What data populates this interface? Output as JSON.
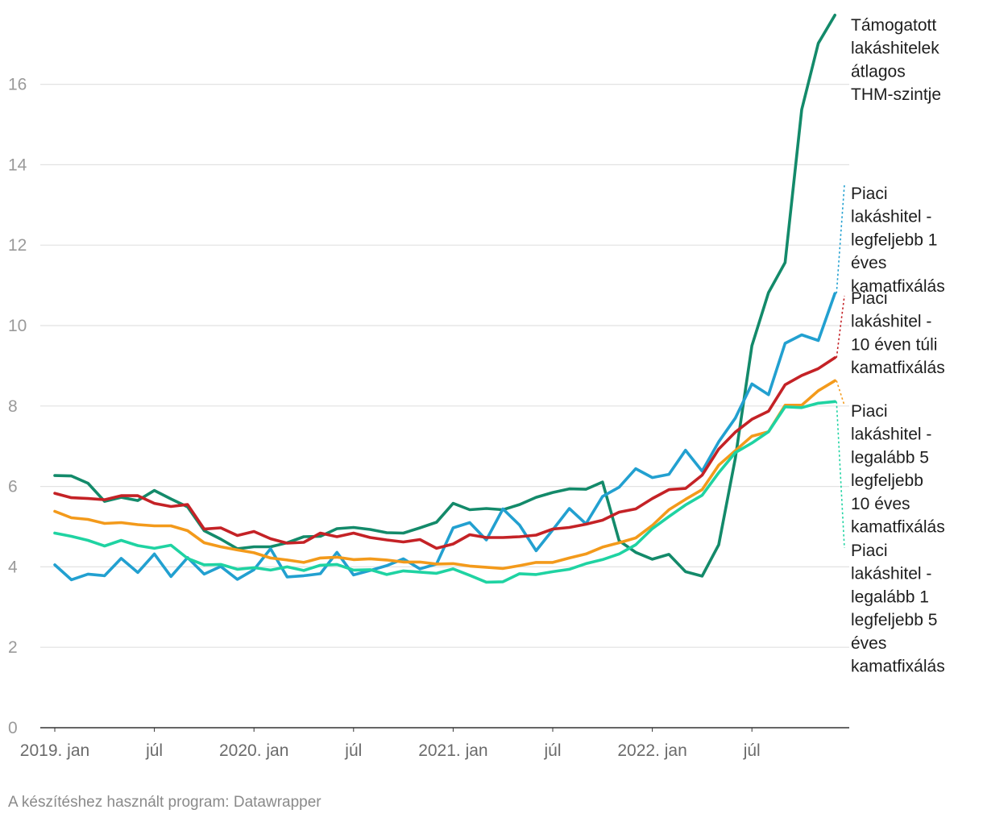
{
  "chart_data": {
    "type": "line",
    "title": "",
    "xlabel": "",
    "ylabel": "",
    "ylim": [
      0,
      18
    ],
    "yticks": [
      0,
      2,
      4,
      6,
      8,
      10,
      12,
      14,
      16
    ],
    "grid": true,
    "x_start": "2019-01",
    "x_ticks": [
      {
        "index": 0,
        "label": "2019. jan"
      },
      {
        "index": 6,
        "label": "júl"
      },
      {
        "index": 12,
        "label": "2020. jan"
      },
      {
        "index": 18,
        "label": "júl"
      },
      {
        "index": 24,
        "label": "2021. jan"
      },
      {
        "index": 30,
        "label": "júl"
      },
      {
        "index": 36,
        "label": "2022. jan"
      },
      {
        "index": 42,
        "label": "júl"
      }
    ],
    "series": [
      {
        "name": "Támogatott lakáshitelek átlagos THM-szintje",
        "label_lines": [
          "Támogatott",
          "lakáshitelek",
          "átlagos",
          "THM-szintje"
        ],
        "color": "#138a6a",
        "values": [
          6.27,
          6.26,
          6.08,
          5.63,
          5.73,
          5.65,
          5.9,
          5.69,
          5.49,
          4.9,
          4.69,
          4.45,
          4.5,
          4.5,
          4.6,
          4.75,
          4.76,
          4.95,
          4.98,
          4.93,
          4.85,
          4.84,
          4.97,
          5.11,
          5.58,
          5.42,
          5.45,
          5.42,
          5.55,
          5.73,
          5.85,
          5.94,
          5.93,
          6.11,
          4.65,
          4.36,
          4.19,
          4.31,
          3.88,
          3.77,
          4.55,
          6.7,
          9.5,
          10.82,
          11.57,
          15.37,
          17.02,
          17.72
        ]
      },
      {
        "name": "Piaci lakáshitel - legfeljebb 1 éves kamatfixálás",
        "label_lines": [
          "Piaci",
          "lakáshitel -",
          "legfeljebb 1",
          "éves",
          "kamatfixálás"
        ],
        "color": "#22a0d0",
        "values": [
          4.05,
          3.68,
          3.82,
          3.78,
          4.21,
          3.86,
          4.32,
          3.76,
          4.23,
          3.82,
          4.01,
          3.69,
          3.93,
          4.45,
          3.75,
          3.78,
          3.83,
          4.36,
          3.8,
          3.91,
          4.03,
          4.2,
          3.95,
          4.07,
          4.97,
          5.1,
          4.67,
          5.44,
          5.04,
          4.4,
          4.92,
          5.45,
          5.07,
          5.75,
          5.98,
          6.44,
          6.22,
          6.3,
          6.9,
          6.38,
          7.11,
          7.7,
          8.55,
          8.28,
          9.56,
          9.77,
          9.63,
          10.8
        ]
      },
      {
        "name": "Piaci lakáshitel - 10 éven túli kamatfixálás",
        "label_lines": [
          "Piaci",
          "lakáshitel -",
          "10 éven túli",
          "kamatfixálás"
        ],
        "color": "#c42226",
        "values": [
          5.83,
          5.72,
          5.7,
          5.67,
          5.77,
          5.77,
          5.58,
          5.5,
          5.55,
          4.94,
          4.97,
          4.78,
          4.88,
          4.7,
          4.59,
          4.61,
          4.84,
          4.75,
          4.84,
          4.73,
          4.67,
          4.62,
          4.68,
          4.46,
          4.57,
          4.8,
          4.73,
          4.73,
          4.75,
          4.79,
          4.94,
          4.98,
          5.06,
          5.16,
          5.36,
          5.44,
          5.7,
          5.92,
          5.95,
          6.28,
          6.93,
          7.35,
          7.67,
          7.87,
          8.53,
          8.76,
          8.93,
          9.2
        ]
      },
      {
        "name": "Piaci lakáshitel - legalább 5 legfeljebb 10 éves kamatfixálás",
        "label_lines": [
          "Piaci",
          "lakáshitel -",
          "legalább 5",
          "legfeljebb",
          "10 éves",
          "kamatfixálás"
        ],
        "color": "#f39a1b",
        "values": [
          5.38,
          5.22,
          5.18,
          5.08,
          5.1,
          5.05,
          5.02,
          5.02,
          4.9,
          4.6,
          4.5,
          4.42,
          4.35,
          4.22,
          4.17,
          4.11,
          4.22,
          4.24,
          4.18,
          4.2,
          4.17,
          4.12,
          4.12,
          4.07,
          4.08,
          4.02,
          3.99,
          3.96,
          4.03,
          4.11,
          4.11,
          4.22,
          4.32,
          4.49,
          4.6,
          4.72,
          5.03,
          5.42,
          5.68,
          5.92,
          6.53,
          6.89,
          7.25,
          7.36,
          8.02,
          8.02,
          8.38,
          8.63
        ]
      },
      {
        "name": "Piaci lakáshitel - legalább 1 legfeljebb 5 éves kamatfixálás",
        "label_lines": [
          "Piaci",
          "lakáshitel -",
          "legalább 1",
          "legfeljebb 5",
          "éves",
          "kamatfixálás"
        ],
        "color": "#1fd3a2",
        "values": [
          4.84,
          4.76,
          4.66,
          4.52,
          4.66,
          4.53,
          4.46,
          4.54,
          4.21,
          4.05,
          4.06,
          3.94,
          3.98,
          3.92,
          4.0,
          3.91,
          4.04,
          4.06,
          3.92,
          3.93,
          3.81,
          3.9,
          3.87,
          3.84,
          3.95,
          3.79,
          3.62,
          3.63,
          3.83,
          3.81,
          3.88,
          3.94,
          4.08,
          4.18,
          4.32,
          4.55,
          4.95,
          5.25,
          5.54,
          5.78,
          6.34,
          6.84,
          7.08,
          7.36,
          7.98,
          7.96,
          8.07,
          8.11
        ]
      }
    ]
  },
  "footer": {
    "credit": "A készítéshez használt program: Datawrapper"
  }
}
